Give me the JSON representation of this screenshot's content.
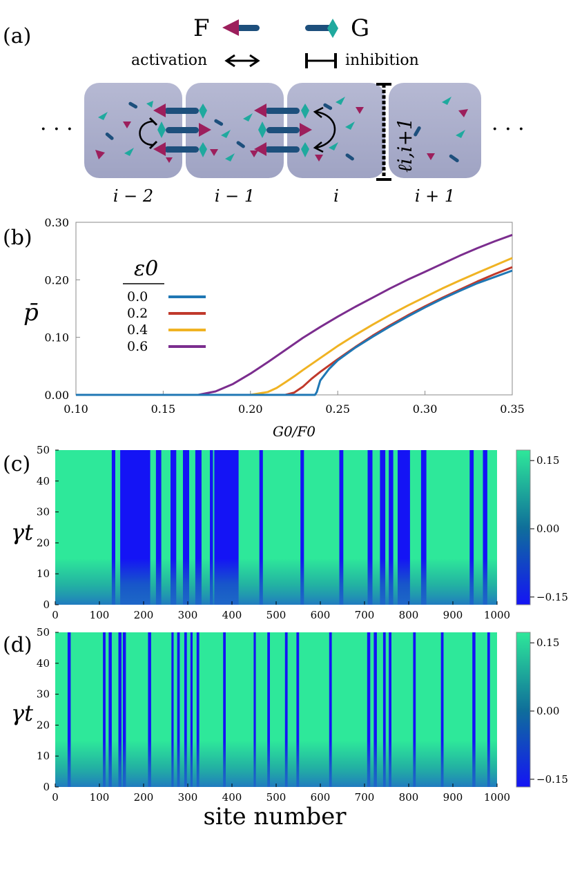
{
  "panel_a": {
    "label": "(a)",
    "legend_F": "F",
    "legend_G": "G",
    "activation_label": "activation",
    "inhibition_label": "inhibition",
    "cell_labels": [
      "i − 2",
      "i − 1",
      "i",
      "i + 1"
    ],
    "link_label": "ℓi,i+1",
    "ellipsis": "· · ·",
    "colors": {
      "F": "#9c1f5c",
      "G": "#1fa99e",
      "rod": "#1d4f7c",
      "cell": "#a9adcb"
    }
  },
  "chart_data": [
    {
      "type": "line",
      "panel": "(b)",
      "xlabel": "G0/F0",
      "ylabel": "p̄",
      "xlim": [
        0.1,
        0.35
      ],
      "ylim": [
        0.0,
        0.3
      ],
      "xticks": [
        "0.10",
        "0.15",
        "0.20",
        "0.25",
        "0.30",
        "0.35"
      ],
      "yticks": [
        "0.00",
        "0.10",
        "0.20",
        "0.30"
      ],
      "legend_title": "ε0",
      "series": [
        {
          "name": "0.0",
          "color": "#1f77b4",
          "x": [
            0.1,
            0.237,
            0.238,
            0.24,
            0.245,
            0.25,
            0.26,
            0.27,
            0.28,
            0.29,
            0.3,
            0.31,
            0.32,
            0.33,
            0.34,
            0.35
          ],
          "y": [
            0.0,
            0.0,
            0.005,
            0.025,
            0.045,
            0.06,
            0.082,
            0.101,
            0.119,
            0.136,
            0.152,
            0.167,
            0.181,
            0.194,
            0.205,
            0.216
          ]
        },
        {
          "name": "0.2",
          "color": "#c0392b",
          "x": [
            0.1,
            0.22,
            0.225,
            0.23,
            0.235,
            0.24,
            0.25,
            0.26,
            0.27,
            0.28,
            0.29,
            0.3,
            0.31,
            0.32,
            0.33,
            0.34,
            0.35
          ],
          "y": [
            0.0,
            0.0,
            0.004,
            0.014,
            0.028,
            0.04,
            0.062,
            0.083,
            0.103,
            0.121,
            0.138,
            0.154,
            0.169,
            0.183,
            0.197,
            0.21,
            0.222
          ]
        },
        {
          "name": "0.4",
          "color": "#f0b323",
          "x": [
            0.1,
            0.2,
            0.21,
            0.215,
            0.22,
            0.225,
            0.23,
            0.24,
            0.25,
            0.26,
            0.27,
            0.28,
            0.29,
            0.3,
            0.31,
            0.32,
            0.33,
            0.34,
            0.35
          ],
          "y": [
            0.0,
            0.0,
            0.005,
            0.012,
            0.022,
            0.032,
            0.043,
            0.064,
            0.085,
            0.104,
            0.122,
            0.139,
            0.155,
            0.17,
            0.185,
            0.199,
            0.212,
            0.225,
            0.238
          ]
        },
        {
          "name": "0.6",
          "color": "#7b2d8e",
          "x": [
            0.1,
            0.17,
            0.18,
            0.19,
            0.2,
            0.21,
            0.22,
            0.23,
            0.24,
            0.25,
            0.26,
            0.27,
            0.28,
            0.29,
            0.3,
            0.31,
            0.32,
            0.33,
            0.34,
            0.35
          ],
          "y": [
            0.0,
            0.0,
            0.006,
            0.019,
            0.037,
            0.057,
            0.078,
            0.099,
            0.118,
            0.136,
            0.153,
            0.169,
            0.185,
            0.2,
            0.214,
            0.228,
            0.242,
            0.255,
            0.267,
            0.278
          ]
        }
      ]
    },
    {
      "type": "heatmap",
      "panel": "(c)",
      "xlabel": "",
      "ylabel": "γt",
      "xlim": [
        0,
        1000
      ],
      "ylim": [
        0,
        50
      ],
      "xticks": [
        "0",
        "100",
        "200",
        "300",
        "400",
        "500",
        "600",
        "700",
        "800",
        "900",
        "1000"
      ],
      "yticks": [
        "0",
        "10",
        "20",
        "30",
        "40",
        "50"
      ],
      "colorbar_ticks": [
        "0.15",
        "0.00",
        "−0.15"
      ],
      "colorbar_range": [
        -0.17,
        0.17
      ],
      "high_color": "#2ee89a",
      "low_color": "#1414f5",
      "low_bands": [
        [
          128,
          136
        ],
        [
          147,
          215
        ],
        [
          228,
          240
        ],
        [
          261,
          274
        ],
        [
          289,
          303
        ],
        [
          317,
          331
        ],
        [
          350,
          357
        ],
        [
          360,
          415
        ],
        [
          462,
          470
        ],
        [
          555,
          563
        ],
        [
          643,
          652
        ],
        [
          707,
          718
        ],
        [
          735,
          747
        ],
        [
          755,
          765
        ],
        [
          775,
          803
        ],
        [
          828,
          840
        ],
        [
          938,
          947
        ],
        [
          968,
          978
        ]
      ]
    },
    {
      "type": "heatmap",
      "panel": "(d)",
      "xlabel": "site number",
      "ylabel": "γt",
      "xlim": [
        0,
        1000
      ],
      "ylim": [
        0,
        50
      ],
      "xticks": [
        "0",
        "100",
        "200",
        "300",
        "400",
        "500",
        "600",
        "700",
        "800",
        "900",
        "1000"
      ],
      "yticks": [
        "0",
        "10",
        "20",
        "30",
        "40",
        "50"
      ],
      "colorbar_ticks": [
        "0.15",
        "0.00",
        "−0.15"
      ],
      "colorbar_range": [
        -0.17,
        0.17
      ],
      "high_color": "#2ee89a",
      "low_color": "#1414f5",
      "low_bands": [
        [
          28,
          35
        ],
        [
          108,
          114
        ],
        [
          121,
          128
        ],
        [
          143,
          150
        ],
        [
          153,
          160
        ],
        [
          210,
          217
        ],
        [
          263,
          268
        ],
        [
          276,
          282
        ],
        [
          292,
          298
        ],
        [
          306,
          311
        ],
        [
          320,
          326
        ],
        [
          380,
          386
        ],
        [
          449,
          454
        ],
        [
          480,
          486
        ],
        [
          520,
          526
        ],
        [
          546,
          552
        ],
        [
          620,
          626
        ],
        [
          706,
          713
        ],
        [
          721,
          728
        ],
        [
          742,
          748
        ],
        [
          755,
          761
        ],
        [
          810,
          816
        ],
        [
          873,
          879
        ],
        [
          944,
          951
        ],
        [
          978,
          984
        ]
      ]
    }
  ]
}
